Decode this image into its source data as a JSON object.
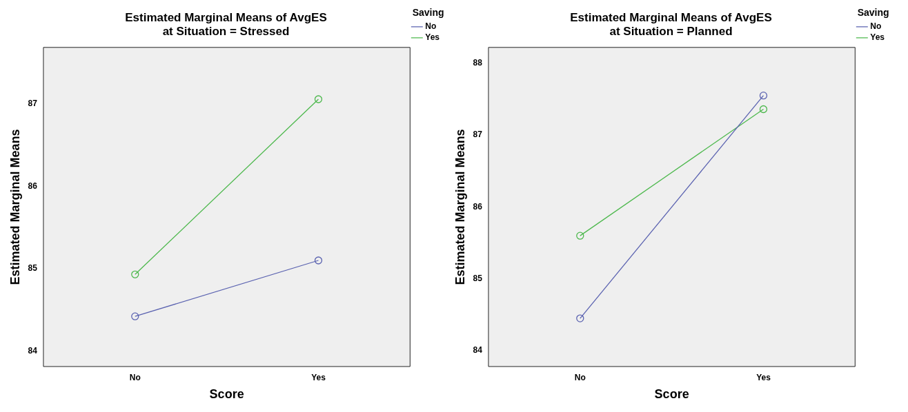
{
  "chart_data": [
    {
      "type": "line",
      "title": "Estimated Marginal Means of AvgES",
      "subtitle": "at Situation = Stressed",
      "xlabel": "Score",
      "ylabel": "Estimated Marginal Means",
      "legend_title": "Saving",
      "categories": [
        "No",
        "Yes"
      ],
      "series": [
        {
          "name": "No",
          "color": "#5a62b0",
          "values": [
            84.42,
            85.1
          ]
        },
        {
          "name": "Yes",
          "color": "#4cb84c",
          "values": [
            84.93,
            87.06
          ]
        }
      ],
      "ylim": [
        83.81,
        87.69
      ],
      "yticks": [
        84,
        85,
        86,
        87
      ],
      "grid": false,
      "legend": "top right",
      "marker": "circle",
      "line_style": "solid"
    },
    {
      "type": "line",
      "title": "Estimated Marginal Means of AvgES",
      "subtitle": "at Situation = Planned",
      "xlabel": "Score",
      "ylabel": "Estimated Marginal Means",
      "legend_title": "Saving",
      "categories": [
        "No",
        "Yes"
      ],
      "series": [
        {
          "name": "No",
          "color": "#5a62b0",
          "values": [
            84.45,
            87.55
          ]
        },
        {
          "name": "Yes",
          "color": "#4cb84c",
          "values": [
            85.6,
            87.36
          ]
        }
      ],
      "ylim": [
        83.78,
        88.22
      ],
      "yticks": [
        84,
        85,
        86,
        87,
        88
      ],
      "grid": false,
      "legend": "top right",
      "marker": "circle",
      "line_style": "solid"
    }
  ]
}
